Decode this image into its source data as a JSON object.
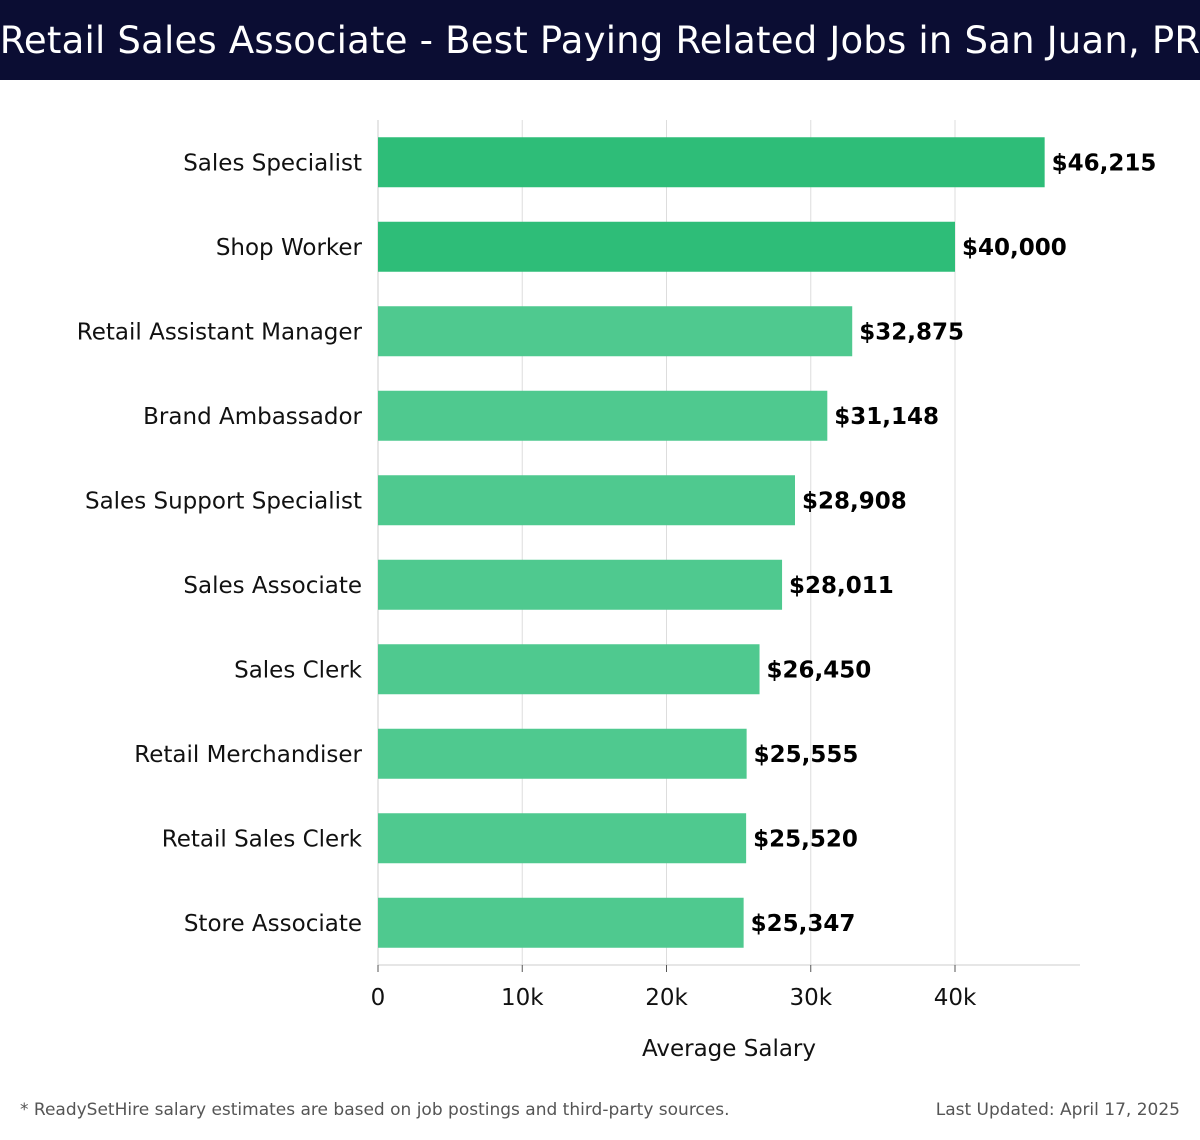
{
  "header": {
    "title": "Retail Sales Associate - Best Paying Related Jobs in San Juan, PR"
  },
  "chart_data": {
    "type": "bar",
    "orientation": "horizontal",
    "title": "Retail Sales Associate - Best Paying Related Jobs in San Juan, PR",
    "xlabel": "Average Salary",
    "ylabel": "",
    "categories": [
      "Sales Specialist",
      "Shop Worker",
      "Retail Assistant Manager",
      "Brand Ambassador",
      "Sales Support Specialist",
      "Sales Associate",
      "Sales Clerk",
      "Retail Merchandiser",
      "Retail Sales Clerk",
      "Store Associate"
    ],
    "values": [
      46215,
      40000,
      32875,
      31148,
      28908,
      28011,
      26450,
      25555,
      25520,
      25347
    ],
    "value_labels": [
      "$46,215",
      "$40,000",
      "$32,875",
      "$31,148",
      "$28,908",
      "$28,011",
      "$26,450",
      "$25,555",
      "$25,520",
      "$25,347"
    ],
    "xticks": [
      0,
      10000,
      20000,
      30000,
      40000
    ],
    "xtick_labels": [
      "0",
      "10k",
      "20k",
      "30k",
      "40k"
    ],
    "xlim": [
      0,
      48600
    ],
    "grid": true,
    "legend": "none",
    "colors": {
      "top_bars": "#2ebd78",
      "other_bars": "#4fc98f",
      "grid": "#dddddd",
      "text": "#111111"
    }
  },
  "footer": {
    "note": "* ReadySetHire salary estimates are based on job postings and third-party sources.",
    "updated": "Last Updated: April 17, 2025"
  }
}
